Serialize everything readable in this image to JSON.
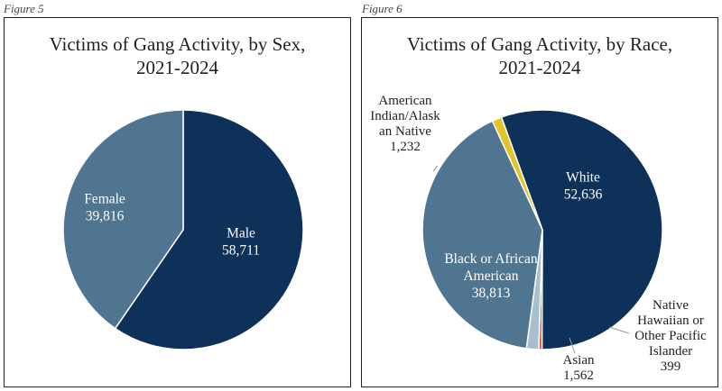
{
  "figures": [
    {
      "label": "Figure 5"
    },
    {
      "label": "Figure 6"
    }
  ],
  "chart_data": [
    {
      "type": "pie",
      "title_lines": [
        "Victims of Gang Activity, by Sex,",
        "2021-2024"
      ],
      "slices": [
        {
          "label_lines": [
            "Male"
          ],
          "value": 58711,
          "value_text": "58,711",
          "color": "#0e3159"
        },
        {
          "label_lines": [
            "Female"
          ],
          "value": 39816,
          "value_text": "39,816",
          "color": "#4f7590"
        }
      ]
    },
    {
      "type": "pie",
      "title_lines": [
        "Victims of Gang Activity, by Race,",
        "2021-2024"
      ],
      "slices": [
        {
          "label_lines": [
            "White"
          ],
          "value": 52636,
          "value_text": "52,636",
          "color": "#0e3159"
        },
        {
          "label_lines": [
            "Native",
            "Hawaiian or",
            "Other Pacific",
            "Islander"
          ],
          "value": 399,
          "value_text": "399",
          "color": "#d8541a"
        },
        {
          "label_lines": [
            "Asian"
          ],
          "value": 1562,
          "value_text": "1,562",
          "color": "#a7c0d1"
        },
        {
          "label_lines": [
            "Black or African",
            "American"
          ],
          "value": 38813,
          "value_text": "38,813",
          "color": "#4f7590"
        },
        {
          "label_lines": [
            "American",
            "Indian/Alask",
            "an Native"
          ],
          "value": 1232,
          "value_text": "1,232",
          "color": "#e0c52a"
        }
      ]
    }
  ]
}
